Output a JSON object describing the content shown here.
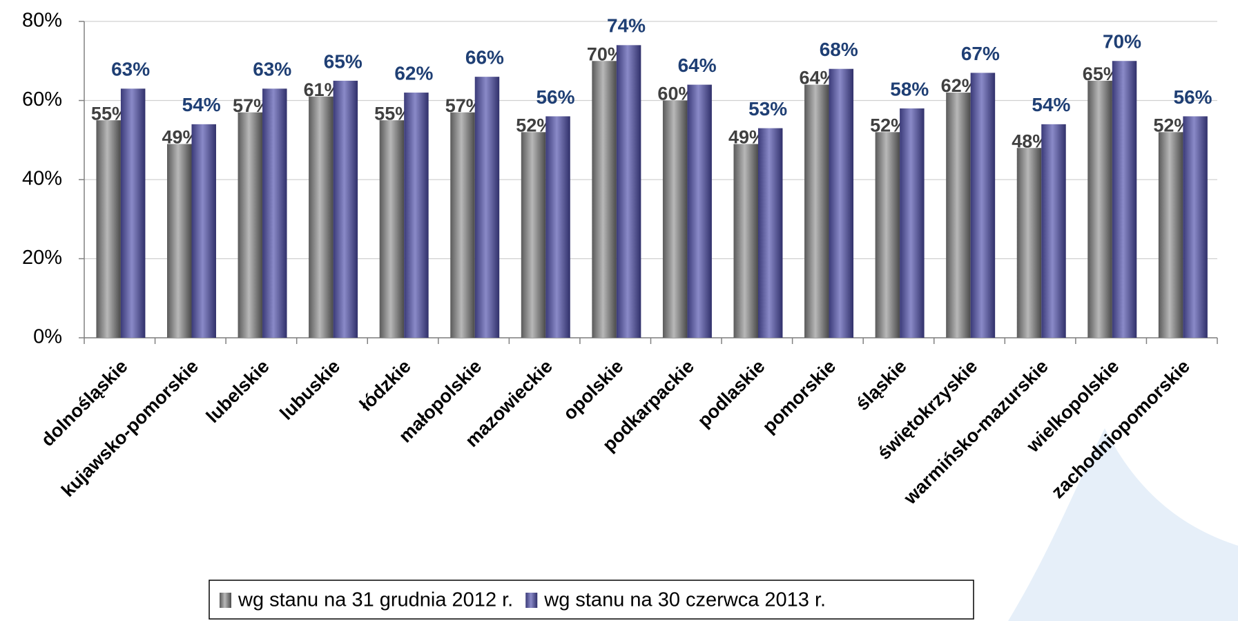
{
  "chart_data": {
    "type": "bar",
    "categories": [
      "dolnośląskie",
      "kujawsko-pomorskie",
      "lubelskie",
      "lubuskie",
      "łódzkie",
      "małopolskie",
      "mazowieckie",
      "opolskie",
      "podkarpackie",
      "podlaskie",
      "pomorskie",
      "śląskie",
      "świętokrzyskie",
      "warmińsko-mazurskie",
      "wielkopolskie",
      "zachodniopomorskie"
    ],
    "series": [
      {
        "name": "wg stanu na 31 grudnia 2012 r.",
        "color": "#808080",
        "values": [
          55,
          49,
          57,
          61,
          55,
          57,
          52,
          70,
          60,
          49,
          64,
          52,
          62,
          48,
          65,
          52
        ],
        "value_labels": [
          "55%",
          "49%",
          "57%",
          "61%",
          "55%",
          "57%",
          "52%",
          "70%",
          "60%",
          "49%",
          "64%",
          "52%",
          "62%",
          "48%",
          "65%",
          "52%"
        ]
      },
      {
        "name": "wg stanu na 30 czerwca 2013 r.",
        "color": "#5a5aa0",
        "values": [
          63,
          54,
          63,
          65,
          62,
          66,
          56,
          74,
          64,
          53,
          68,
          58,
          67,
          54,
          70,
          56
        ],
        "value_labels": [
          "63%",
          "54%",
          "63%",
          "65%",
          "62%",
          "66%",
          "56%",
          "74%",
          "64%",
          "53%",
          "68%",
          "58%",
          "67%",
          "54%",
          "70%",
          "56%"
        ]
      }
    ],
    "ylim": [
      0,
      80
    ],
    "yticks": [
      {
        "value": 0,
        "label": "0%"
      },
      {
        "value": 20,
        "label": "20%"
      },
      {
        "value": 40,
        "label": "40%"
      },
      {
        "value": 60,
        "label": "60%"
      },
      {
        "value": 80,
        "label": "80%"
      }
    ],
    "grid": true
  }
}
